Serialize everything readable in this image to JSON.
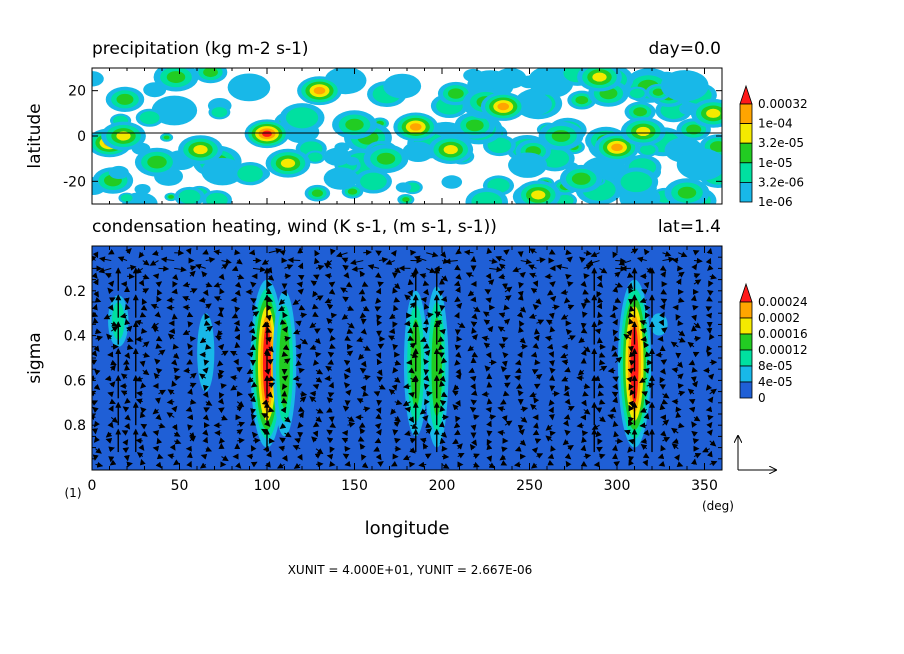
{
  "chart_data": [
    {
      "type": "heatmap",
      "title": "precipitation (kg m-2 s-1)",
      "time_label": "day=0.0",
      "ylabel": "latitude",
      "xlim": [
        0,
        360
      ],
      "ylim": [
        -30,
        30
      ],
      "y_ticks": [
        "20",
        "0",
        "-20"
      ],
      "y_tick_values": [
        20,
        0,
        -20
      ],
      "colorbar": {
        "labels": [
          "0.00032",
          "1e-04",
          "3.2e-05",
          "1e-05",
          "3.2e-06",
          "1e-06"
        ],
        "colors": [
          "#ff1a1a",
          "#ffa500",
          "#f5ea00",
          "#22cc22",
          "#00e0a0",
          "#18b8e8"
        ]
      },
      "features": [
        {
          "lon": 10,
          "lat": -3,
          "intensity": 4
        },
        {
          "lon": 18,
          "lat": 0,
          "intensity": 3
        },
        {
          "lon": 48,
          "lat": 26,
          "intensity": 2
        },
        {
          "lon": 62,
          "lat": -6,
          "intensity": 3
        },
        {
          "lon": 100,
          "lat": 1,
          "intensity": 5
        },
        {
          "lon": 112,
          "lat": -12,
          "intensity": 3
        },
        {
          "lon": 130,
          "lat": 20,
          "intensity": 4
        },
        {
          "lon": 150,
          "lat": 5,
          "intensity": 2
        },
        {
          "lon": 168,
          "lat": -10,
          "intensity": 2
        },
        {
          "lon": 185,
          "lat": 4,
          "intensity": 4
        },
        {
          "lon": 205,
          "lat": -6,
          "intensity": 3
        },
        {
          "lon": 225,
          "lat": 15,
          "intensity": 2
        },
        {
          "lon": 235,
          "lat": 13,
          "intensity": 4
        },
        {
          "lon": 255,
          "lat": -26,
          "intensity": 3
        },
        {
          "lon": 268,
          "lat": 0,
          "intensity": 2
        },
        {
          "lon": 290,
          "lat": 26,
          "intensity": 3
        },
        {
          "lon": 300,
          "lat": -5,
          "intensity": 4
        },
        {
          "lon": 315,
          "lat": 2,
          "intensity": 3
        },
        {
          "lon": 340,
          "lat": -25,
          "intensity": 2
        },
        {
          "lon": 355,
          "lat": 10,
          "intensity": 3
        }
      ]
    },
    {
      "type": "heatmap",
      "title": "condensation heating, wind (K s-1, (m s-1, s-1))",
      "lat_label": "lat=1.4",
      "ylabel": "sigma",
      "xlabel": "longitude",
      "xlim": [
        0,
        360
      ],
      "ylim": [
        1.0,
        0.0
      ],
      "x_ticks": [
        "0",
        "50",
        "100",
        "150",
        "200",
        "250",
        "300",
        "350"
      ],
      "x_tick_values": [
        0,
        50,
        100,
        150,
        200,
        250,
        300,
        350
      ],
      "y_ticks": [
        "0.2",
        "0.4",
        "0.6",
        "0.8"
      ],
      "y_tick_values": [
        0.2,
        0.4,
        0.6,
        0.8
      ],
      "x_unit_label": "(deg)",
      "y_unit_label": "(1)",
      "colorbar": {
        "labels": [
          "0.00024",
          "0.0002",
          "0.00016",
          "0.00012",
          "8e-05",
          "4e-05",
          "0"
        ],
        "colors": [
          "#ff1a1a",
          "#ffa500",
          "#f5ea00",
          "#22cc22",
          "#00e0a0",
          "#18b8e8",
          "#1f5fd6"
        ]
      },
      "heating_columns": [
        {
          "lon": 15,
          "sigma_top": 0.22,
          "sigma_bottom": 0.45,
          "max": 8e-05
        },
        {
          "lon": 65,
          "sigma_top": 0.3,
          "sigma_bottom": 0.65,
          "max": 4e-05
        },
        {
          "lon": 100,
          "sigma_top": 0.15,
          "sigma_bottom": 0.9,
          "max": 0.00024
        },
        {
          "lon": 110,
          "sigma_top": 0.2,
          "sigma_bottom": 0.85,
          "max": 0.00012
        },
        {
          "lon": 185,
          "sigma_top": 0.2,
          "sigma_bottom": 0.85,
          "max": 0.00012
        },
        {
          "lon": 197,
          "sigma_top": 0.18,
          "sigma_bottom": 0.9,
          "max": 0.00012
        },
        {
          "lon": 310,
          "sigma_top": 0.15,
          "sigma_bottom": 0.9,
          "max": 0.00024
        },
        {
          "lon": 324,
          "sigma_top": 0.3,
          "sigma_bottom": 0.4,
          "max": 4e-05
        }
      ],
      "updrafts": [
        15,
        25,
        100,
        185,
        197,
        287,
        310,
        320
      ],
      "footer": "XUNIT = 4.000E+01, YUNIT = 2.667E-06"
    }
  ]
}
